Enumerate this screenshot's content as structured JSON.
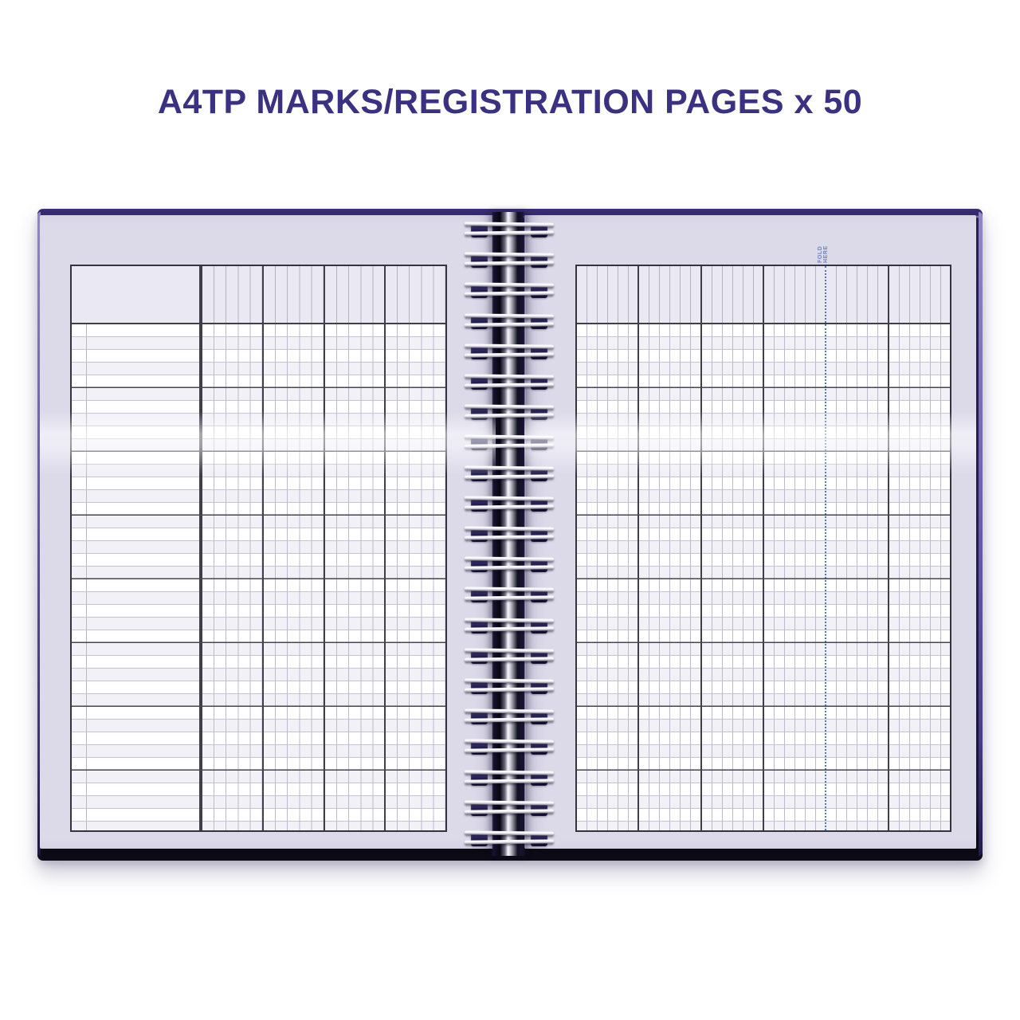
{
  "title": "A4TP MARKS/REGISTRATION PAGES x 50",
  "book": {
    "fold_label": "FOLD HERE",
    "binding": {
      "type": "twin-wire-spiral",
      "coil_count": 21
    },
    "left_page": {
      "layout": "marks-grid-with-name-column",
      "name_column": true,
      "name_sub_column": true,
      "column_groups": 4,
      "columns_per_group": 5,
      "row_group_size": 5,
      "header_row": "blank"
    },
    "right_page": {
      "layout": "marks-grid-full-width",
      "column_groups": 6,
      "columns_per_group": 6,
      "row_group_size": 5,
      "fold_line_after_group": 4,
      "header_row": "blank"
    }
  },
  "colors": {
    "background": "#ffffff",
    "title_text": "#3a3182",
    "cover": "#241d50",
    "cover_edge_highlight": "#8d84c4",
    "page": "#dcd9e9",
    "grid_background": "#fdfdff",
    "grid_line_thin": "#bcb9ca",
    "grid_line_thick": "#3f3e49",
    "row_stripe": "#f2f1f8",
    "fold_line": "#4f79b9",
    "fold_label_text": "#6b84bb",
    "wire_silver": "#f4f3f7",
    "punch_hole": "#241e51"
  }
}
